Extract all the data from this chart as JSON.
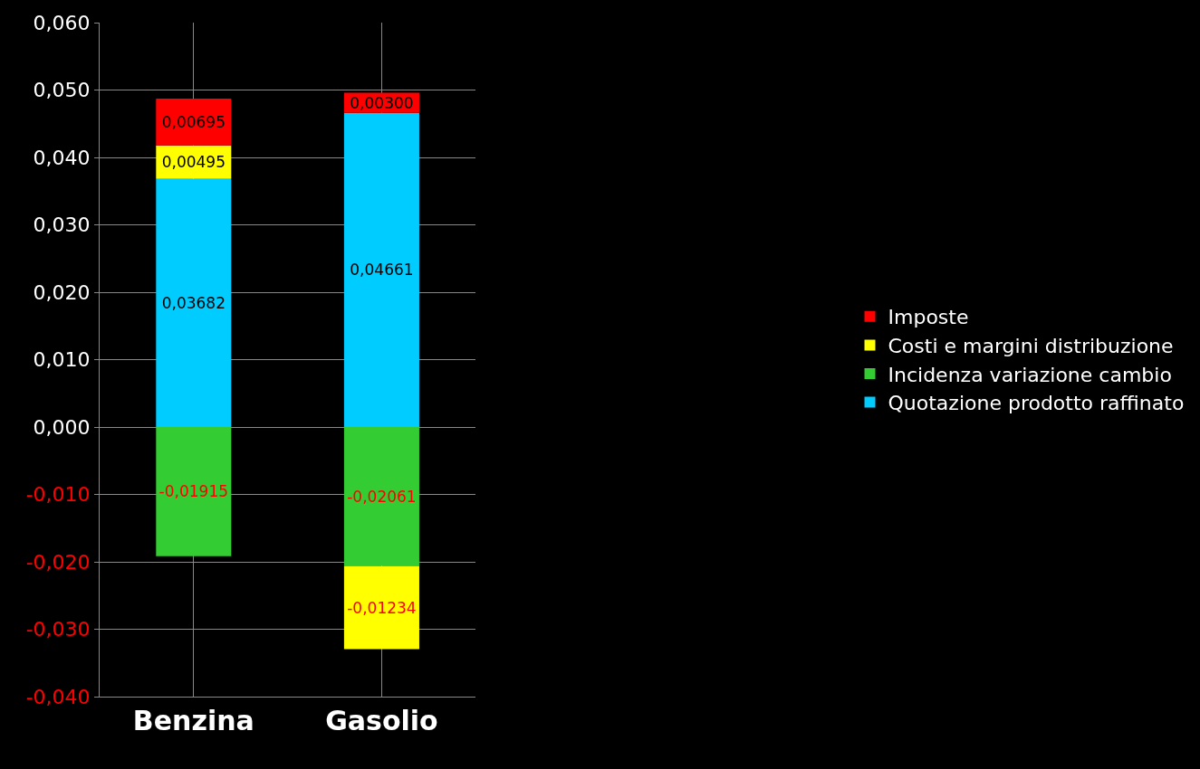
{
  "chart_data": {
    "type": "bar",
    "stacked": true,
    "categories": [
      "Benzina",
      "Gasolio"
    ],
    "series": [
      {
        "name": "Quotazione prodotto raffinato",
        "color": "#00ccff",
        "values": [
          0.03682,
          0.04661
        ],
        "value_labels": [
          "0,03682",
          "0,04661"
        ]
      },
      {
        "name": "Incidenza variazione cambio",
        "color": "#33cc33",
        "values": [
          -0.01915,
          -0.02061
        ],
        "value_labels": [
          "-0,01915",
          "-0,02061"
        ]
      },
      {
        "name": "Costi e margini distribuzione",
        "color": "#ffff00",
        "values": [
          0.00495,
          -0.01234
        ],
        "value_labels": [
          "0,00495",
          "-0,01234"
        ]
      },
      {
        "name": "Imposte",
        "color": "#ff0000",
        "values": [
          0.00695,
          0.003
        ],
        "value_labels": [
          "0,00695",
          "0,00300"
        ]
      }
    ],
    "ylim": [
      -0.04,
      0.06
    ],
    "yticks": [
      {
        "value": -0.04,
        "label": "-0,040"
      },
      {
        "value": -0.03,
        "label": "-0,030"
      },
      {
        "value": -0.02,
        "label": "-0,020"
      },
      {
        "value": -0.01,
        "label": "-0,010"
      },
      {
        "value": 0,
        "label": "0,000"
      },
      {
        "value": 0.01,
        "label": "0,010"
      },
      {
        "value": 0.02,
        "label": "0,020"
      },
      {
        "value": 0.03,
        "label": "0,030"
      },
      {
        "value": 0.04,
        "label": "0,040"
      },
      {
        "value": 0.05,
        "label": "0,050"
      },
      {
        "value": 0.06,
        "label": "0,060"
      }
    ],
    "grid": true,
    "legend": "right"
  }
}
